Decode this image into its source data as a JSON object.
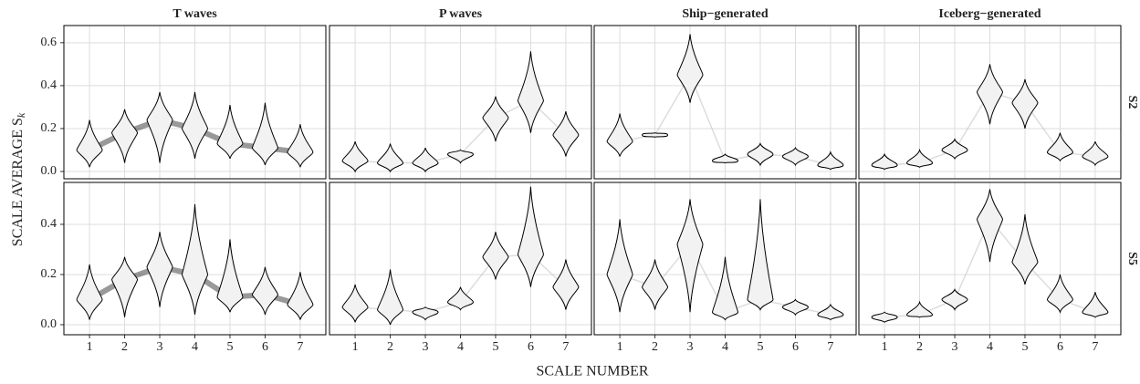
{
  "chart_data": {
    "type": "violin",
    "xlabel": "SCALE NUMBER",
    "ylabel": "SCALE AVERAGE S",
    "ylabel_sub": "k",
    "columns": [
      "T waves",
      "P waves",
      "Ship−generated",
      "Iceberg−generated"
    ],
    "categories": [
      1,
      2,
      3,
      4,
      5,
      6,
      7
    ],
    "grid": true,
    "color": "#f2f2f2",
    "rows": [
      {
        "label": "S2",
        "ylim": [
          -0.034,
          0.68
        ],
        "yticks": [
          {
            "value": 0,
            "label": "0.0"
          },
          0.2,
          0.4,
          0.6
        ],
        "panels": [
          {
            "min": [
              0.02,
              0.04,
              0.04,
              0.06,
              0.06,
              0.03,
              0.02
            ],
            "mode": [
              0.1,
              0.18,
              0.24,
              0.2,
              0.13,
              0.11,
              0.09
            ],
            "max": [
              0.24,
              0.29,
              0.37,
              0.37,
              0.31,
              0.32,
              0.22
            ]
          },
          {
            "min": [
              0,
              0,
              0,
              0.04,
              0.14,
              0.18,
              0.07
            ],
            "mode": [
              0.05,
              0.04,
              0.04,
              0.08,
              0.25,
              0.33,
              0.17
            ],
            "max": [
              0.14,
              0.13,
              0.11,
              0.1,
              0.35,
              0.56,
              0.28
            ]
          },
          {
            "min": [
              0.07,
              0.16,
              0.32,
              0.04,
              0.03,
              0.03,
              0.01
            ],
            "mode": [
              0.14,
              0.17,
              0.45,
              0.05,
              0.08,
              0.07,
              0.03
            ],
            "max": [
              0.27,
              0.18,
              0.64,
              0.08,
              0.13,
              0.11,
              0.09
            ]
          },
          {
            "min": [
              0.01,
              0.02,
              0.06,
              0.22,
              0.2,
              0.05,
              0.03
            ],
            "mode": [
              0.03,
              0.04,
              0.1,
              0.37,
              0.32,
              0.09,
              0.07
            ],
            "max": [
              0.08,
              0.1,
              0.15,
              0.5,
              0.43,
              0.18,
              0.14
            ]
          }
        ]
      },
      {
        "label": "S5",
        "ylim": [
          -0.04,
          0.567
        ],
        "yticks": [
          {
            "value": 0,
            "label": "0.0"
          },
          0.2,
          0.4
        ],
        "panels": [
          {
            "min": [
              0.02,
              0.03,
              0.07,
              0.04,
              0.05,
              0.04,
              0.02
            ],
            "mode": [
              0.1,
              0.18,
              0.23,
              0.2,
              0.11,
              0.12,
              0.08
            ],
            "max": [
              0.24,
              0.27,
              0.37,
              0.48,
              0.34,
              0.23,
              0.21
            ]
          },
          {
            "min": [
              0.01,
              0,
              0.02,
              0.06,
              0.18,
              0.15,
              0.06
            ],
            "mode": [
              0.07,
              0.06,
              0.05,
              0.09,
              0.27,
              0.28,
              0.15
            ],
            "max": [
              0.16,
              0.22,
              0.07,
              0.15,
              0.37,
              0.55,
              0.26
            ]
          },
          {
            "min": [
              0.05,
              0.06,
              0.05,
              0.02,
              0.06,
              0.04,
              0.02
            ],
            "mode": [
              0.2,
              0.15,
              0.32,
              0.05,
              0.1,
              0.07,
              0.04
            ],
            "max": [
              0.42,
              0.26,
              0.5,
              0.27,
              0.5,
              0.1,
              0.08
            ]
          },
          {
            "min": [
              0.01,
              0.03,
              0.06,
              0.25,
              0.16,
              0.05,
              0.03
            ],
            "mode": [
              0.03,
              0.04,
              0.1,
              0.42,
              0.25,
              0.1,
              0.05
            ],
            "max": [
              0.05,
              0.09,
              0.14,
              0.54,
              0.44,
              0.2,
              0.13
            ]
          }
        ]
      }
    ]
  }
}
